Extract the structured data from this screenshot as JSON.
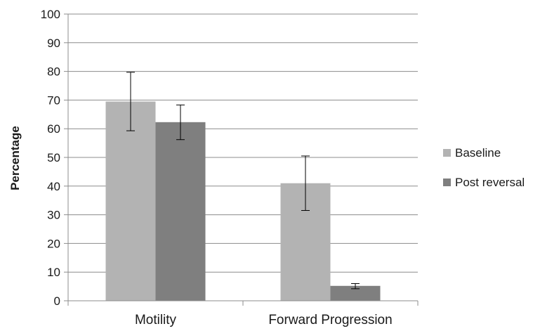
{
  "chart_data": {
    "type": "bar",
    "title": "",
    "xlabel": "",
    "ylabel": "Percentage",
    "ylim": [
      0,
      100
    ],
    "yticks": [
      0,
      10,
      20,
      30,
      40,
      50,
      60,
      70,
      80,
      90,
      100
    ],
    "grid": true,
    "legend_position": "right",
    "categories": [
      "Motility",
      "Forward Progression"
    ],
    "series": [
      {
        "name": "Baseline",
        "color": "#b3b3b3",
        "values": [
          69.5,
          41
        ],
        "error_low": [
          59.3,
          31.5
        ],
        "error_high": [
          79.7,
          50.5
        ]
      },
      {
        "name": "Post reversal",
        "color": "#7f7f7f",
        "values": [
          62.3,
          5.2
        ],
        "error_low": [
          56.2,
          4.2
        ],
        "error_high": [
          68.3,
          6.0
        ]
      }
    ]
  }
}
